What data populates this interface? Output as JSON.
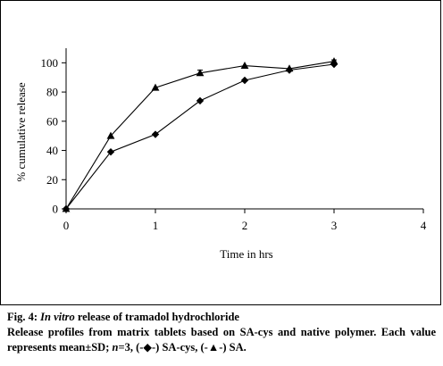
{
  "chart_data": {
    "type": "line",
    "xlabel": "Time in hrs",
    "ylabel": "% cumulative release",
    "xlim": [
      0,
      4
    ],
    "ylim": [
      0,
      110
    ],
    "xticks": [
      "0",
      "1",
      "2",
      "3",
      "4"
    ],
    "yticks": [
      "0",
      "20",
      "40",
      "60",
      "80",
      "100"
    ],
    "grid": false,
    "legend": "none",
    "series": [
      {
        "marker": "diamond",
        "x": [
          0,
          0.5,
          1,
          1.5,
          2,
          2.5,
          3
        ],
        "y": [
          0,
          39,
          51,
          74,
          88,
          95,
          99
        ]
      },
      {
        "marker": "triangle",
        "x": [
          0,
          0.5,
          1,
          1.5,
          2,
          2.5,
          3
        ],
        "y": [
          0,
          50,
          83,
          93,
          98,
          96,
          101
        ],
        "error": [
          0,
          0,
          0,
          2,
          0,
          0,
          1
        ]
      }
    ]
  },
  "caption": {
    "fig_prefix": "Fig. 4: ",
    "fig_italic": "In vitro",
    "fig_rest": " release of tramadol hydrochloride",
    "desc_a": "Release profiles from matrix tablets based on SA-cys and native polymer. Each value represents mean±SD; ",
    "desc_n": "n",
    "desc_b": "=3, (-◆-) SA-cys, (-▲-) SA."
  }
}
